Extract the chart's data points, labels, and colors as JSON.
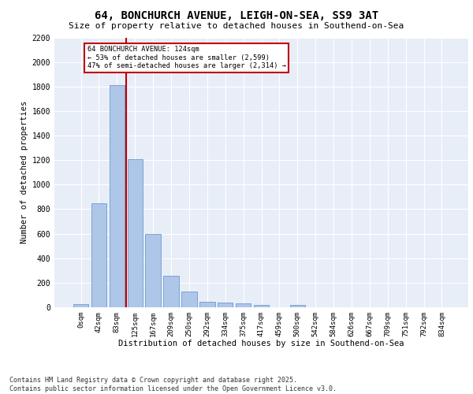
{
  "title1": "64, BONCHURCH AVENUE, LEIGH-ON-SEA, SS9 3AT",
  "title2": "Size of property relative to detached houses in Southend-on-Sea",
  "xlabel": "Distribution of detached houses by size in Southend-on-Sea",
  "ylabel": "Number of detached properties",
  "bar_labels": [
    "0sqm",
    "42sqm",
    "83sqm",
    "125sqm",
    "167sqm",
    "209sqm",
    "250sqm",
    "292sqm",
    "334sqm",
    "375sqm",
    "417sqm",
    "459sqm",
    "500sqm",
    "542sqm",
    "584sqm",
    "626sqm",
    "667sqm",
    "709sqm",
    "751sqm",
    "792sqm",
    "834sqm"
  ],
  "bar_values": [
    25,
    845,
    1810,
    1205,
    595,
    258,
    128,
    48,
    38,
    30,
    20,
    0,
    18,
    0,
    0,
    0,
    0,
    0,
    0,
    0,
    0
  ],
  "bar_color": "#aec6e8",
  "bar_edge_color": "#5b8ec4",
  "vline_color": "#c00000",
  "annotation_text": "64 BONCHURCH AVENUE: 124sqm\n← 53% of detached houses are smaller (2,599)\n47% of semi-detached houses are larger (2,314) →",
  "annotation_box_color": "#c00000",
  "ylim": [
    0,
    2200
  ],
  "yticks": [
    0,
    200,
    400,
    600,
    800,
    1000,
    1200,
    1400,
    1600,
    1800,
    2000,
    2200
  ],
  "bg_color": "#e8eef7",
  "footer1": "Contains HM Land Registry data © Crown copyright and database right 2025.",
  "footer2": "Contains public sector information licensed under the Open Government Licence v3.0."
}
